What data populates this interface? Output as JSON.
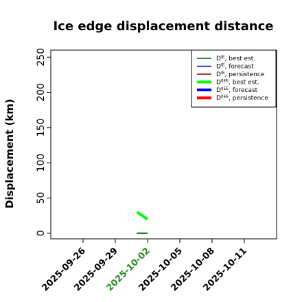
{
  "chart_data": {
    "type": "line",
    "title": "Ice edge displacement distance",
    "ylabel": "Displacement (km)",
    "xlabel": "",
    "x_type": "date",
    "xlim": [
      "2025-09-23",
      "2025-10-14"
    ],
    "ylim": [
      -8,
      260
    ],
    "y_ticks": [
      0,
      50,
      100,
      150,
      200,
      250
    ],
    "x_ticks": [
      "2025-09-26",
      "2025-09-29",
      "2025-10-02",
      "2025-10-05",
      "2025-10-08",
      "2025-10-11"
    ],
    "x_ticks_highlight": "2025-10-02",
    "x_tick_color_default": "#000000",
    "x_tick_color_highlight": "#228B22",
    "grid": false,
    "legend_position": "top-right",
    "legend_labels": [
      {
        "base": "D",
        "sup": "IE",
        "suffix": ", best est."
      },
      {
        "base": "D",
        "sup": "IE",
        "suffix": ", forecast"
      },
      {
        "base": "D",
        "sup": "IE",
        "suffix": ", persistence"
      },
      {
        "base": "D",
        "sup": "IIEE",
        "suffix": ", best est."
      },
      {
        "base": "D",
        "sup": "IIEE",
        "suffix": ", forecast"
      },
      {
        "base": "D",
        "sup": "IIEE",
        "suffix": ", persistence"
      }
    ],
    "series": [
      {
        "color": "#006400",
        "thick": false,
        "dates": [
          "2025-10-01",
          "2025-10-02"
        ],
        "values": [
          0,
          0
        ]
      },
      {
        "color": "#0000cc",
        "thick": false,
        "dates": [],
        "values": []
      },
      {
        "color": "#8b0000",
        "thick": false,
        "dates": [],
        "values": []
      },
      {
        "color": "#00ff00",
        "thick": true,
        "dates": [
          "2025-10-01",
          "2025-10-02"
        ],
        "values": [
          30,
          20
        ]
      },
      {
        "color": "#0000ff",
        "thick": true,
        "dates": [],
        "values": []
      },
      {
        "color": "#ff0000",
        "thick": true,
        "dates": [],
        "values": []
      }
    ]
  }
}
